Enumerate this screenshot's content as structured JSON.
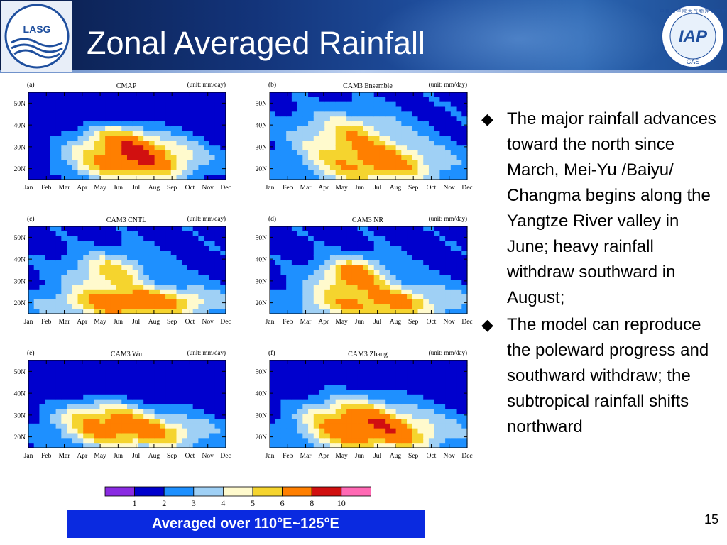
{
  "header": {
    "title": "Zonal Averaged Rainfall",
    "left_logo_text": "LASG",
    "right_logo_text": "IAP",
    "right_logo_small": "CAS",
    "right_logo_ring": "中 国 科 学 院 大 气 物 理 研 究 所"
  },
  "panels": [
    {
      "letter": "(a)",
      "name": "CMAP",
      "unit": "(unit: mm/day)"
    },
    {
      "letter": "(b)",
      "name": "CAM3 Ensemble",
      "unit": "(unit: mm/day)"
    },
    {
      "letter": "(c)",
      "name": "CAM3 CNTL",
      "unit": "(unit: mm/day)"
    },
    {
      "letter": "(d)",
      "name": "CAM3 NR",
      "unit": "(unit: mm/day)"
    },
    {
      "letter": "(e)",
      "name": "CAM3 Wu",
      "unit": "(unit: mm/day)"
    },
    {
      "letter": "(f)",
      "name": "CAM3 Zhang",
      "unit": "(unit: mm/day)"
    }
  ],
  "axes": {
    "months": [
      "Jan",
      "Feb",
      "Mar",
      "Apr",
      "May",
      "Jun",
      "Jul",
      "Aug",
      "Sep",
      "Oct",
      "Nov",
      "Dec"
    ],
    "lat_labels": [
      "50N",
      "40N",
      "30N",
      "20N"
    ]
  },
  "legend": {
    "colors": [
      "#8a2be2",
      "#0000cd",
      "#1e90ff",
      "#9fd0f5",
      "#fffacd",
      "#f5d42e",
      "#ff7f00",
      "#d11010",
      "#ff69b4"
    ],
    "labels": [
      "1",
      "2",
      "3",
      "4",
      "5",
      "6",
      "8",
      "10"
    ]
  },
  "caption": "Averaged over 110°E~125°E",
  "bullets": [
    "The major rainfall advances toward the north since March, Mei-Yu /Baiyu/ Changma begins along the Yangtze River valley in June; heavy rainfall withdraw southward in August;",
    "The model can reproduce the poleward progress and southward withdraw; the subtropical rainfall shifts northward"
  ],
  "bullet_icon": "diamond-icon",
  "page_number": "15"
}
